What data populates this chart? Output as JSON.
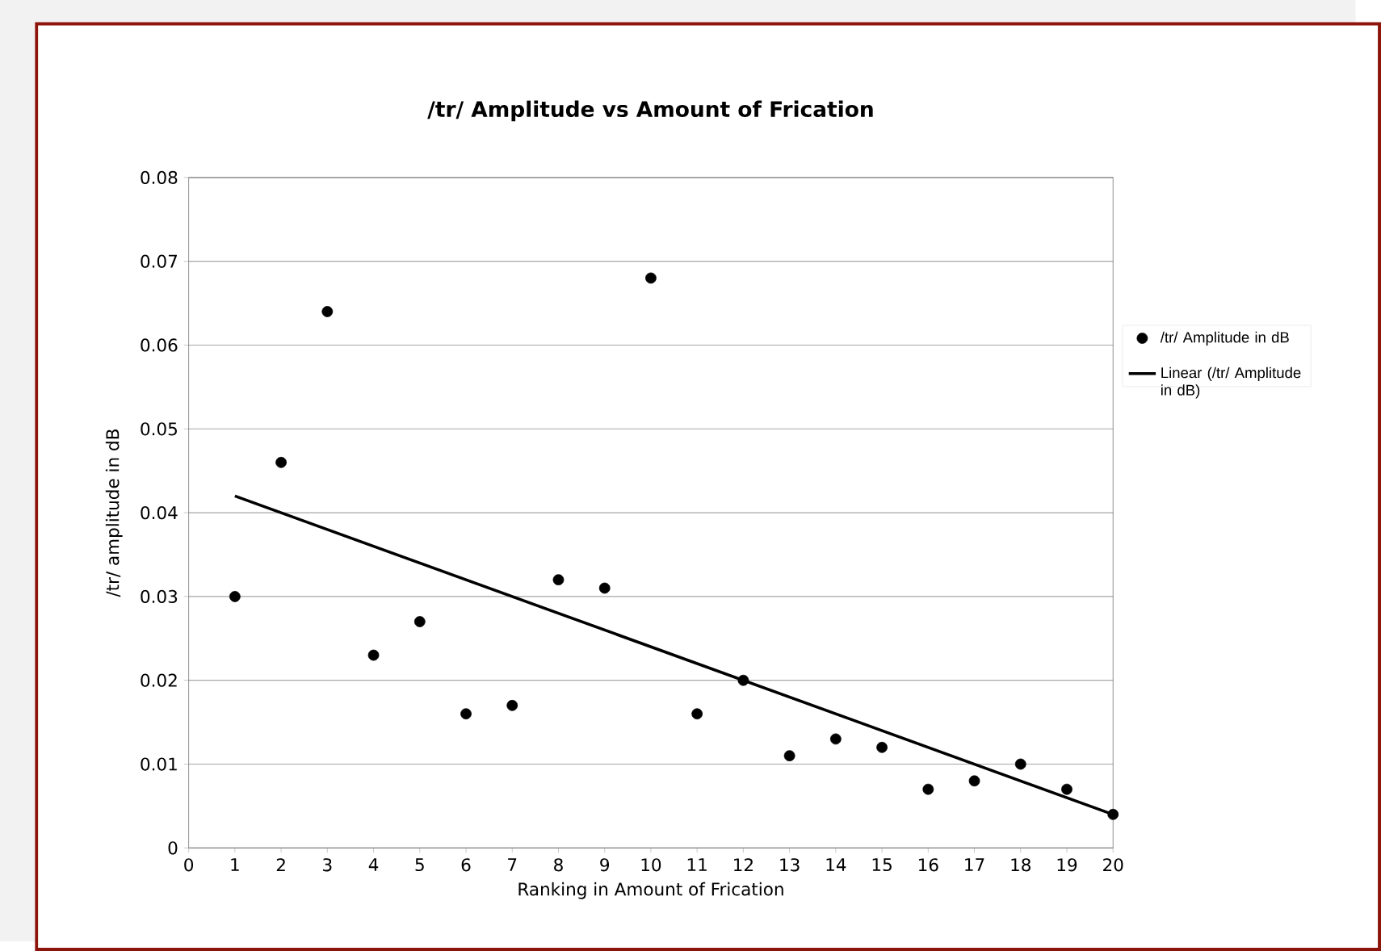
{
  "chart_data": {
    "type": "scatter",
    "title": "/tr/ Amplitude vs Amount of Frication",
    "xlabel": "Ranking in Amount of Frication",
    "ylabel": "/tr/ amplitude in dB",
    "x": [
      1,
      2,
      3,
      4,
      5,
      6,
      7,
      8,
      9,
      10,
      11,
      12,
      13,
      14,
      15,
      16,
      17,
      18,
      19,
      20
    ],
    "series": [
      {
        "name": "/tr/ Amplitude in dB",
        "color": "#000000",
        "marker": "circle",
        "values": [
          0.03,
          0.046,
          0.064,
          0.023,
          0.027,
          0.016,
          0.017,
          0.032,
          0.031,
          0.068,
          0.016,
          0.02,
          0.011,
          0.013,
          0.012,
          0.007,
          0.008,
          0.01,
          0.007,
          0.004
        ]
      },
      {
        "name": "Linear (/tr/ Amplitude in dB)",
        "type": "line",
        "color": "#000000",
        "marker": "none",
        "line_style": "solid",
        "x": [
          1,
          20
        ],
        "values": [
          0.042,
          0.004
        ]
      }
    ],
    "xlim": [
      0,
      20
    ],
    "xticks": [
      0,
      1,
      2,
      3,
      4,
      5,
      6,
      7,
      8,
      9,
      10,
      11,
      12,
      13,
      14,
      15,
      16,
      17,
      18,
      19,
      20
    ],
    "ylim": [
      0,
      0.08
    ],
    "yticks": [
      0,
      0.01,
      0.02,
      0.03,
      0.04,
      0.05,
      0.06,
      0.07,
      0.08
    ],
    "grid": "y",
    "legend": "right"
  }
}
